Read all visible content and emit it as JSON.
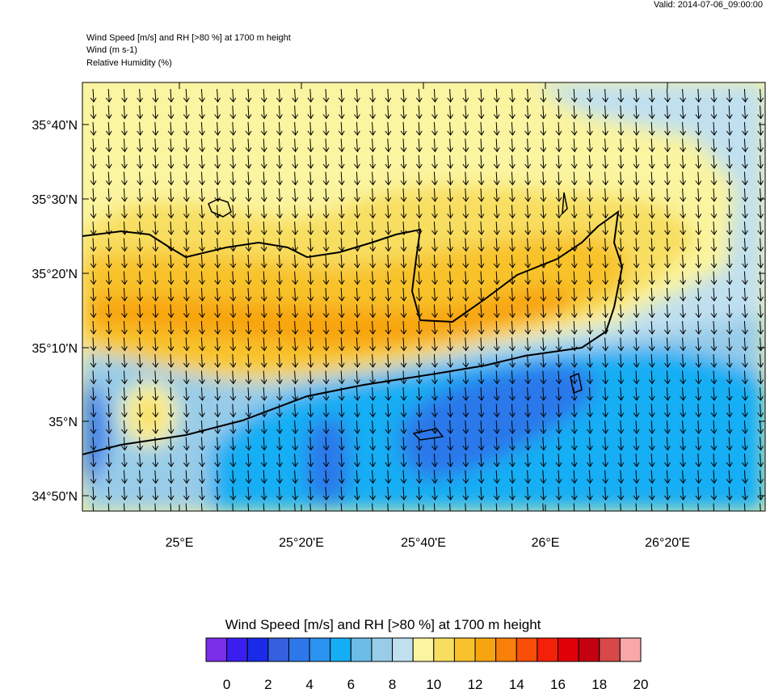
{
  "valid_time": "Valid: 2014-07-06_09:00:00",
  "header": {
    "line1": "Wind Speed [m/s] and RH [>80 %] at 1700 m height",
    "line2": "Wind   (m s-1)",
    "line3": "Relative Humidity   (%)"
  },
  "axes": {
    "lat_labels": [
      "35°40'N",
      "35°30'N",
      "35°20'N",
      "35°10'N",
      "35°N",
      "34°50'N"
    ],
    "lon_labels": [
      "25°E",
      "25°20'E",
      "25°40'E",
      "26°E",
      "26°20'E"
    ]
  },
  "colorbar": {
    "title": "Wind Speed [m/s] and RH [>80 %] at 1700 m height",
    "labels": [
      "0",
      "2",
      "4",
      "6",
      "8",
      "10",
      "12",
      "14",
      "16",
      "18",
      "20"
    ],
    "colors": [
      "#7a2ee8",
      "#3a1ef0",
      "#1a2ae8",
      "#3460e0",
      "#2c78ea",
      "#2a92f0",
      "#14aef4",
      "#6cbce8",
      "#98cce8",
      "#c0e0f0",
      "#fbf4a0",
      "#f8de60",
      "#f8c22c",
      "#f8a410",
      "#f88008",
      "#f84e08",
      "#f42008",
      "#e00008",
      "#c40010",
      "#d84848",
      "#f8a8a8"
    ]
  },
  "wind_direction": "from north (southward arrows)",
  "colors": {
    "field_pale": "#fbf4a0",
    "field_yellow": "#f8de60",
    "field_amber": "#f8c22c",
    "field_orange": "#f8a410",
    "field_light_blue": "#c0e0f0",
    "field_sky": "#98cce8",
    "field_blue": "#14aef4",
    "field_deep_blue": "#2c78ea"
  }
}
